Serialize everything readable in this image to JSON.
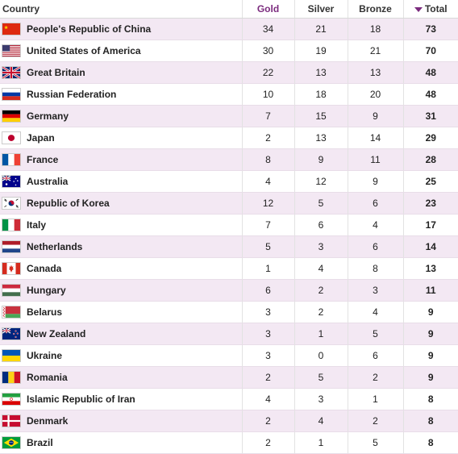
{
  "headers": {
    "country": "Country",
    "gold": "Gold",
    "silver": "Silver",
    "bronze": "Bronze",
    "total": "Total"
  },
  "rows": [
    {
      "name": "People's Republic of China",
      "flag": "china-flag-icon",
      "gold": "34",
      "silver": "21",
      "bronze": "18",
      "total": "73"
    },
    {
      "name": "United States of America",
      "flag": "usa-flag-icon",
      "gold": "30",
      "silver": "19",
      "bronze": "21",
      "total": "70"
    },
    {
      "name": "Great Britain",
      "flag": "uk-flag-icon",
      "gold": "22",
      "silver": "13",
      "bronze": "13",
      "total": "48"
    },
    {
      "name": "Russian Federation",
      "flag": "russia-flag-icon",
      "gold": "10",
      "silver": "18",
      "bronze": "20",
      "total": "48"
    },
    {
      "name": "Germany",
      "flag": "germany-flag-icon",
      "gold": "7",
      "silver": "15",
      "bronze": "9",
      "total": "31"
    },
    {
      "name": "Japan",
      "flag": "japan-flag-icon",
      "gold": "2",
      "silver": "13",
      "bronze": "14",
      "total": "29"
    },
    {
      "name": "France",
      "flag": "france-flag-icon",
      "gold": "8",
      "silver": "9",
      "bronze": "11",
      "total": "28"
    },
    {
      "name": "Australia",
      "flag": "australia-flag-icon",
      "gold": "4",
      "silver": "12",
      "bronze": "9",
      "total": "25"
    },
    {
      "name": "Republic of Korea",
      "flag": "korea-flag-icon",
      "gold": "12",
      "silver": "5",
      "bronze": "6",
      "total": "23"
    },
    {
      "name": "Italy",
      "flag": "italy-flag-icon",
      "gold": "7",
      "silver": "6",
      "bronze": "4",
      "total": "17"
    },
    {
      "name": "Netherlands",
      "flag": "netherlands-flag-icon",
      "gold": "5",
      "silver": "3",
      "bronze": "6",
      "total": "14"
    },
    {
      "name": "Canada",
      "flag": "canada-flag-icon",
      "gold": "1",
      "silver": "4",
      "bronze": "8",
      "total": "13"
    },
    {
      "name": "Hungary",
      "flag": "hungary-flag-icon",
      "gold": "6",
      "silver": "2",
      "bronze": "3",
      "total": "11"
    },
    {
      "name": "Belarus",
      "flag": "belarus-flag-icon",
      "gold": "3",
      "silver": "2",
      "bronze": "4",
      "total": "9"
    },
    {
      "name": "New Zealand",
      "flag": "new-zealand-flag-icon",
      "gold": "3",
      "silver": "1",
      "bronze": "5",
      "total": "9"
    },
    {
      "name": "Ukraine",
      "flag": "ukraine-flag-icon",
      "gold": "3",
      "silver": "0",
      "bronze": "6",
      "total": "9"
    },
    {
      "name": "Romania",
      "flag": "romania-flag-icon",
      "gold": "2",
      "silver": "5",
      "bronze": "2",
      "total": "9"
    },
    {
      "name": "Islamic Republic of Iran",
      "flag": "iran-flag-icon",
      "gold": "4",
      "silver": "3",
      "bronze": "1",
      "total": "8"
    },
    {
      "name": "Denmark",
      "flag": "denmark-flag-icon",
      "gold": "2",
      "silver": "4",
      "bronze": "2",
      "total": "8"
    },
    {
      "name": "Brazil",
      "flag": "brazil-flag-icon",
      "gold": "2",
      "silver": "1",
      "bronze": "5",
      "total": "8"
    }
  ]
}
